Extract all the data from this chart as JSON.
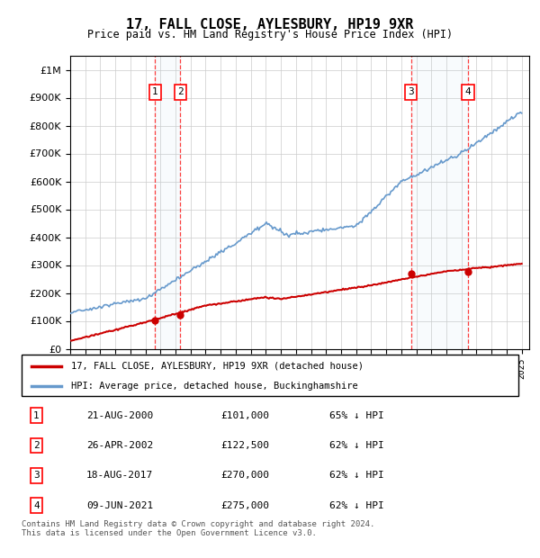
{
  "title": "17, FALL CLOSE, AYLESBURY, HP19 9XR",
  "subtitle": "Price paid vs. HM Land Registry's House Price Index (HPI)",
  "ytick_values": [
    0,
    100000,
    200000,
    300000,
    400000,
    500000,
    600000,
    700000,
    800000,
    900000,
    1000000
  ],
  "ylim": [
    0,
    1050000
  ],
  "xlim_start": 1995.0,
  "xlim_end": 2025.5,
  "hpi_color": "#6699cc",
  "price_color": "#cc0000",
  "transactions": [
    {
      "num": 1,
      "date_str": "21-AUG-2000",
      "year": 2000.64,
      "price": 101000
    },
    {
      "num": 2,
      "date_str": "26-APR-2002",
      "year": 2002.32,
      "price": 122500
    },
    {
      "num": 3,
      "date_str": "18-AUG-2017",
      "year": 2017.64,
      "price": 270000
    },
    {
      "num": 4,
      "date_str": "09-JUN-2021",
      "year": 2021.44,
      "price": 275000
    }
  ],
  "legend_label_red": "17, FALL CLOSE, AYLESBURY, HP19 9XR (detached house)",
  "legend_label_blue": "HPI: Average price, detached house, Buckinghamshire",
  "footer": "Contains HM Land Registry data © Crown copyright and database right 2024.\nThis data is licensed under the Open Government Licence v3.0.",
  "table_rows": [
    [
      "1",
      "21-AUG-2000",
      "£101,000",
      "65% ↓ HPI"
    ],
    [
      "2",
      "26-APR-2002",
      "£122,500",
      "62% ↓ HPI"
    ],
    [
      "3",
      "18-AUG-2017",
      "£270,000",
      "62% ↓ HPI"
    ],
    [
      "4",
      "09-JUN-2021",
      "£275,000",
      "62% ↓ HPI"
    ]
  ]
}
